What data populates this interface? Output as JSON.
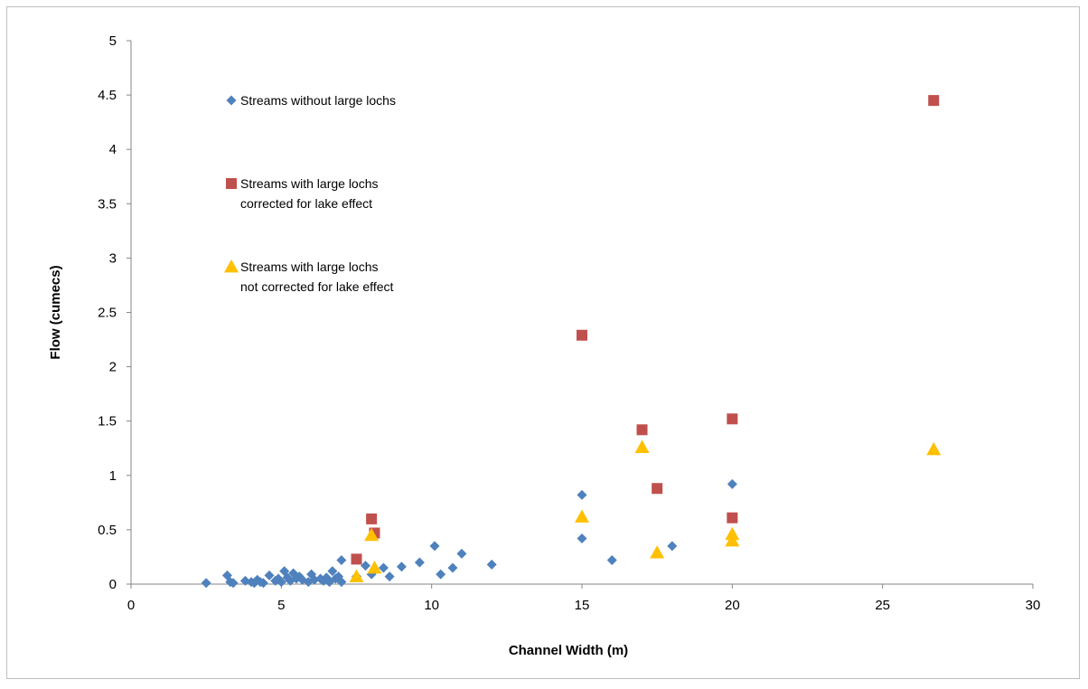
{
  "chart_data": {
    "type": "scatter",
    "title": "",
    "xlabel": "Channel Width (m)",
    "ylabel": "Flow (cumecs)",
    "xlim": [
      0,
      30
    ],
    "ylim": [
      0,
      5
    ],
    "xticks": [
      0,
      5,
      10,
      15,
      20,
      25,
      30
    ],
    "yticks": [
      0,
      0.5,
      1,
      1.5,
      2,
      2.5,
      3,
      3.5,
      4,
      4.5,
      5
    ],
    "grid": false,
    "legend_position": "top-left, inside plot",
    "series": [
      {
        "name": "Streams without large lochs",
        "marker": "diamond",
        "color": "#4f81bd",
        "points": [
          [
            2.5,
            0.01
          ],
          [
            3.2,
            0.08
          ],
          [
            3.3,
            0.02
          ],
          [
            3.4,
            0.01
          ],
          [
            3.8,
            0.03
          ],
          [
            4.0,
            0.02
          ],
          [
            4.1,
            0.01
          ],
          [
            4.2,
            0.04
          ],
          [
            4.3,
            0.02
          ],
          [
            4.4,
            0.01
          ],
          [
            4.6,
            0.08
          ],
          [
            4.8,
            0.03
          ],
          [
            4.9,
            0.05
          ],
          [
            5.0,
            0.02
          ],
          [
            5.1,
            0.12
          ],
          [
            5.2,
            0.06
          ],
          [
            5.3,
            0.03
          ],
          [
            5.4,
            0.1
          ],
          [
            5.5,
            0.05
          ],
          [
            5.6,
            0.07
          ],
          [
            5.7,
            0.04
          ],
          [
            5.9,
            0.02
          ],
          [
            6.0,
            0.09
          ],
          [
            6.1,
            0.04
          ],
          [
            6.3,
            0.05
          ],
          [
            6.4,
            0.03
          ],
          [
            6.5,
            0.06
          ],
          [
            6.6,
            0.02
          ],
          [
            6.7,
            0.12
          ],
          [
            6.8,
            0.05
          ],
          [
            6.9,
            0.07
          ],
          [
            7.0,
            0.22
          ],
          [
            7.0,
            0.02
          ],
          [
            7.5,
            0.07
          ],
          [
            7.8,
            0.17
          ],
          [
            8.0,
            0.09
          ],
          [
            8.4,
            0.15
          ],
          [
            8.6,
            0.07
          ],
          [
            9.0,
            0.16
          ],
          [
            9.6,
            0.2
          ],
          [
            10.1,
            0.35
          ],
          [
            10.3,
            0.09
          ],
          [
            10.7,
            0.15
          ],
          [
            11.0,
            0.28
          ],
          [
            12.0,
            0.18
          ],
          [
            15.0,
            0.82
          ],
          [
            15.0,
            0.42
          ],
          [
            16.0,
            0.22
          ],
          [
            18.0,
            0.35
          ],
          [
            20.0,
            0.92
          ]
        ]
      },
      {
        "name": "Streams with large lochs\ncorrected for lake effect",
        "marker": "square",
        "color": "#c0504d",
        "points": [
          [
            7.5,
            0.23
          ],
          [
            8.0,
            0.6
          ],
          [
            8.1,
            0.47
          ],
          [
            15.0,
            2.29
          ],
          [
            17.0,
            1.42
          ],
          [
            17.5,
            0.88
          ],
          [
            20.0,
            1.52
          ],
          [
            20.0,
            0.61
          ],
          [
            26.7,
            4.45
          ]
        ]
      },
      {
        "name": "Streams with large lochs\nnot corrected for lake effect",
        "marker": "triangle",
        "color": "#ffc000",
        "points": [
          [
            7.5,
            0.07
          ],
          [
            8.0,
            0.45
          ],
          [
            8.1,
            0.15
          ],
          [
            15.0,
            0.62
          ],
          [
            17.0,
            1.26
          ],
          [
            17.5,
            0.29
          ],
          [
            20.0,
            0.46
          ],
          [
            20.0,
            0.4
          ],
          [
            26.7,
            1.24
          ]
        ]
      }
    ]
  }
}
